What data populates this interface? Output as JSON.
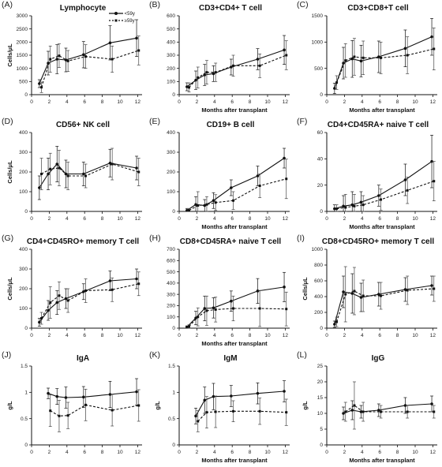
{
  "legend": {
    "items": [
      {
        "label": "<59y",
        "style": "solid"
      },
      {
        "label": "≥59y",
        "style": "dashed"
      }
    ]
  },
  "chart_data": [
    {
      "label": "(A)",
      "type": "line",
      "title": "Lymphocyte",
      "ylabel": "Cells/μL",
      "xlabel": "",
      "ylim": [
        0,
        3000
      ],
      "yticks": [
        0,
        500,
        1000,
        1500,
        2000,
        2500,
        3000
      ],
      "xticks": [
        0,
        2,
        4,
        6,
        8,
        10,
        12
      ],
      "x": [
        1,
        2,
        3,
        4,
        6,
        9,
        12
      ],
      "series": [
        {
          "name": "<59y",
          "values": [
            420,
            1200,
            1350,
            1320,
            1520,
            1970,
            2150
          ],
          "err": [
            150,
            450,
            550,
            450,
            500,
            650,
            700
          ]
        },
        {
          "name": "≥59y",
          "values": [
            280,
            1350,
            1480,
            1280,
            1450,
            1350,
            1680
          ],
          "err": [
            200,
            500,
            450,
            400,
            450,
            500,
            550
          ]
        }
      ]
    },
    {
      "label": "(B)",
      "type": "line",
      "title": "CD3+CD4+ T cell",
      "ylabel": "",
      "xlabel": "Months after transplant",
      "ylim": [
        0,
        600
      ],
      "yticks": [
        0,
        100,
        200,
        300,
        400,
        500,
        600
      ],
      "xticks": [
        0,
        2,
        4,
        6,
        8,
        10,
        12
      ],
      "x": [
        1,
        2,
        3,
        4,
        6,
        9,
        12
      ],
      "series": [
        {
          "name": "<59y",
          "values": [
            60,
            110,
            150,
            160,
            210,
            270,
            340
          ],
          "err": [
            30,
            70,
            80,
            60,
            60,
            80,
            110
          ]
        },
        {
          "name": "≥59y",
          "values": [
            55,
            130,
            170,
            170,
            220,
            220,
            300
          ],
          "err": [
            35,
            80,
            90,
            70,
            80,
            90,
            110
          ]
        }
      ]
    },
    {
      "label": "(C)",
      "type": "line",
      "title": "CD3+CD8+T cell",
      "ylabel": "",
      "xlabel": "Months after transplant",
      "ylim": [
        0,
        1500
      ],
      "yticks": [
        0,
        500,
        1000,
        1500
      ],
      "xticks": [
        0,
        2,
        4,
        6,
        8,
        10,
        12
      ],
      "x": [
        1,
        2,
        3,
        4,
        6,
        9,
        12
      ],
      "series": [
        {
          "name": "<59y",
          "values": [
            120,
            600,
            680,
            640,
            720,
            880,
            1100
          ],
          "err": [
            100,
            300,
            350,
            300,
            300,
            350,
            350
          ]
        },
        {
          "name": "≥59y",
          "values": [
            230,
            650,
            720,
            700,
            700,
            750,
            870
          ],
          "err": [
            130,
            320,
            350,
            320,
            300,
            350,
            400
          ]
        }
      ]
    },
    {
      "label": "(D)",
      "type": "line",
      "title": "CD56+ NK cell",
      "ylabel": "Cells/μL",
      "xlabel": "",
      "ylim": [
        0,
        400
      ],
      "yticks": [
        0,
        100,
        200,
        300,
        400
      ],
      "xticks": [
        0,
        2,
        4,
        6,
        8,
        10,
        12
      ],
      "x": [
        1,
        2,
        3,
        4,
        6,
        9,
        12
      ],
      "series": [
        {
          "name": "<59y",
          "values": [
            120,
            190,
            240,
            190,
            190,
            245,
            220
          ],
          "err": [
            60,
            80,
            90,
            70,
            60,
            70,
            60
          ]
        },
        {
          "name": "≥59y",
          "values": [
            190,
            215,
            220,
            180,
            180,
            240,
            200
          ],
          "err": [
            80,
            80,
            90,
            70,
            60,
            80,
            70
          ]
        }
      ]
    },
    {
      "label": "(E)",
      "type": "line",
      "title": "CD19+ B cell",
      "ylabel": "",
      "xlabel": "Months after transplant",
      "ylim": [
        0,
        400
      ],
      "yticks": [
        0,
        100,
        200,
        300,
        400
      ],
      "xticks": [
        0,
        2,
        4,
        6,
        8,
        10,
        12
      ],
      "x": [
        1,
        2,
        3,
        4,
        6,
        9,
        12
      ],
      "series": [
        {
          "name": "<59y",
          "values": [
            5,
            35,
            30,
            55,
            120,
            180,
            270
          ],
          "err": [
            10,
            40,
            30,
            40,
            40,
            50,
            50
          ]
        },
        {
          "name": "≥59y",
          "values": [
            5,
            30,
            35,
            45,
            55,
            130,
            165
          ],
          "err": [
            10,
            70,
            40,
            40,
            45,
            60,
            100
          ]
        }
      ]
    },
    {
      "label": "(F)",
      "type": "line",
      "title": "CD4+CD45RA+ naive T cell",
      "ylabel": "",
      "xlabel": "Months after transplant",
      "ylim": [
        0,
        60
      ],
      "yticks": [
        0,
        20,
        40,
        60
      ],
      "xticks": [
        0,
        2,
        4,
        6,
        8,
        10,
        12
      ],
      "x": [
        1,
        2,
        3,
        4,
        6,
        9,
        12
      ],
      "series": [
        {
          "name": "<59y",
          "values": [
            2,
            4,
            5,
            7,
            12,
            24,
            38
          ],
          "err": [
            3,
            8,
            10,
            8,
            8,
            12,
            20
          ]
        },
        {
          "name": "≥59y",
          "values": [
            2,
            3,
            4,
            5,
            9,
            16,
            23
          ],
          "err": [
            3,
            10,
            9,
            7,
            8,
            10,
            15
          ]
        }
      ]
    },
    {
      "label": "(G)",
      "type": "line",
      "title": "CD4+CD45RO+ memory T cell",
      "ylabel": "Cells/μL",
      "xlabel": "",
      "ylim": [
        0,
        400
      ],
      "yticks": [
        0,
        100,
        200,
        300,
        400
      ],
      "xticks": [
        0,
        2,
        4,
        6,
        8,
        10,
        12
      ],
      "x": [
        1,
        2,
        3,
        4,
        6,
        9,
        12
      ],
      "series": [
        {
          "name": "<59y",
          "values": [
            30,
            90,
            130,
            150,
            185,
            240,
            250
          ],
          "err": [
            20,
            50,
            60,
            50,
            40,
            50,
            50
          ]
        },
        {
          "name": "≥59y",
          "values": [
            50,
            130,
            165,
            140,
            190,
            195,
            225
          ],
          "err": [
            30,
            80,
            70,
            60,
            60,
            60,
            60
          ]
        }
      ]
    },
    {
      "label": "(H)",
      "type": "line",
      "title": "CD8+CD45RA+ naive T cell",
      "ylabel": "",
      "xlabel": "Months after transplant",
      "ylim": [
        0,
        700
      ],
      "yticks": [
        0,
        100,
        200,
        300,
        400,
        500,
        600,
        700
      ],
      "xticks": [
        0,
        2,
        4,
        6,
        8,
        10,
        12
      ],
      "x": [
        1,
        2,
        3,
        4,
        6,
        9,
        12
      ],
      "series": [
        {
          "name": "<59y",
          "values": [
            10,
            90,
            175,
            180,
            240,
            330,
            365
          ],
          "err": [
            10,
            60,
            110,
            90,
            90,
            110,
            130
          ]
        },
        {
          "name": "≥59y",
          "values": [
            15,
            100,
            155,
            165,
            175,
            175,
            170
          ],
          "err": [
            15,
            80,
            130,
            110,
            110,
            160,
            150
          ]
        }
      ]
    },
    {
      "label": "(I)",
      "type": "line",
      "title": "CD8+CD45RO+ memory T cell",
      "ylabel": "Cells/μL",
      "xlabel": "",
      "ylim": [
        0,
        1000
      ],
      "yticks": [
        0,
        200,
        400,
        600,
        800,
        1000
      ],
      "xticks": [
        0,
        2,
        4,
        6,
        8,
        10,
        12
      ],
      "x": [
        1,
        2,
        3,
        4,
        6,
        9,
        12
      ],
      "series": [
        {
          "name": "<59y",
          "values": [
            50,
            460,
            440,
            390,
            430,
            490,
            540
          ],
          "err": [
            40,
            200,
            250,
            180,
            150,
            150,
            120
          ]
        },
        {
          "name": "≥59y",
          "values": [
            80,
            430,
            470,
            410,
            410,
            480,
            500
          ],
          "err": [
            60,
            350,
            300,
            200,
            170,
            180,
            160
          ]
        }
      ]
    },
    {
      "label": "(J)",
      "type": "line",
      "title": "IgA",
      "ylabel": "g/L",
      "xlabel": "",
      "ylim": [
        0,
        1.5
      ],
      "yticks": [
        0,
        0.5,
        1.0,
        1.5
      ],
      "xticks": [
        0,
        2,
        4,
        6,
        8,
        10,
        12
      ],
      "x": [
        2,
        3,
        4,
        6,
        9,
        12
      ],
      "series": [
        {
          "name": "<59y",
          "values": [
            0.98,
            0.92,
            0.9,
            0.91,
            0.96,
            1.01
          ],
          "err": [
            0.1,
            0.15,
            0.2,
            0.2,
            0.25,
            0.25
          ]
        },
        {
          "name": "≥59y",
          "values": [
            0.65,
            0.55,
            0.56,
            0.76,
            0.66,
            0.75
          ],
          "err": [
            0.3,
            0.3,
            0.25,
            0.3,
            0.3,
            0.3
          ]
        }
      ]
    },
    {
      "label": "(K)",
      "type": "line",
      "title": "IgM",
      "ylabel": "g/L",
      "xlabel": "Months after transplant",
      "ylim": [
        0,
        1.5
      ],
      "yticks": [
        0,
        0.5,
        1.0,
        1.5
      ],
      "xticks": [
        0,
        2,
        4,
        6,
        8,
        10,
        12
      ],
      "x": [
        2,
        3,
        4,
        6,
        9,
        12
      ],
      "series": [
        {
          "name": "<59y",
          "values": [
            0.55,
            0.85,
            0.92,
            0.93,
            0.98,
            1.02
          ],
          "err": [
            0.15,
            0.25,
            0.25,
            0.2,
            0.2,
            0.2
          ]
        },
        {
          "name": "≥59y",
          "values": [
            0.45,
            0.62,
            0.63,
            0.64,
            0.64,
            0.62
          ],
          "err": [
            0.2,
            0.3,
            0.3,
            0.2,
            0.25,
            0.25
          ]
        }
      ]
    },
    {
      "label": "(L)",
      "type": "line",
      "title": "IgG",
      "ylabel": "g/L",
      "xlabel": "Months after transplant",
      "ylim": [
        0,
        25
      ],
      "yticks": [
        0,
        5,
        10,
        15,
        20,
        25
      ],
      "xticks": [
        0,
        2,
        4,
        6,
        8,
        10,
        12
      ],
      "x": [
        2,
        3,
        4,
        6,
        9,
        12
      ],
      "series": [
        {
          "name": "<59y",
          "values": [
            10,
            11,
            10.5,
            11,
            12.5,
            13
          ],
          "err": [
            2,
            3,
            2,
            2,
            2.5,
            2.5
          ]
        },
        {
          "name": "≥59y",
          "values": [
            10.5,
            12.5,
            10.5,
            10.5,
            10.5,
            10.5
          ],
          "err": [
            3,
            7.5,
            3,
            2,
            2,
            2
          ]
        }
      ]
    }
  ]
}
